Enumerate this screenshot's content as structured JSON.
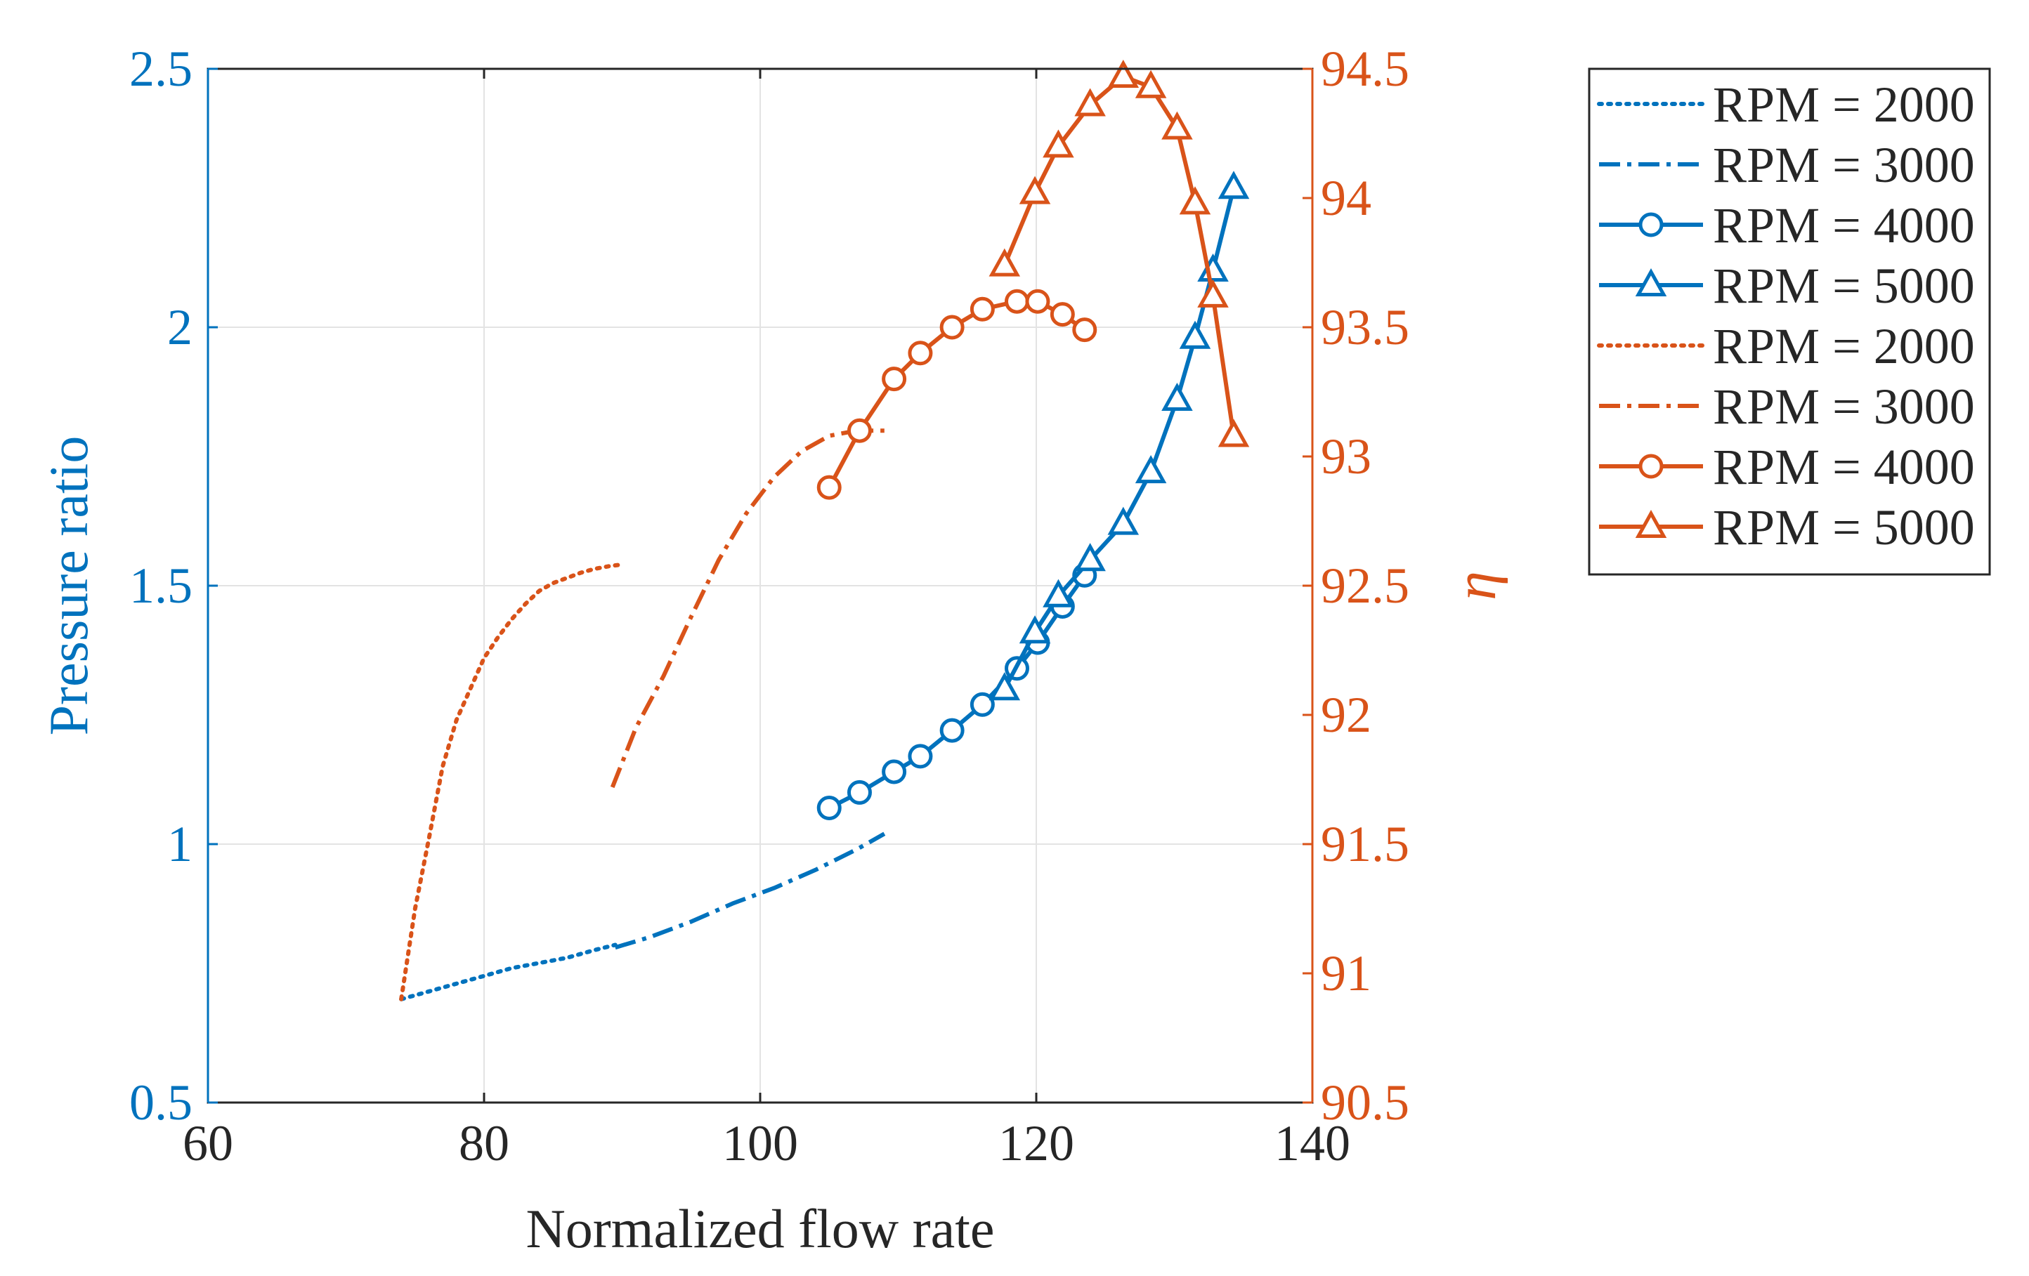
{
  "chart_data": {
    "type": "line",
    "xlabel": "Normalized flow rate",
    "ylabel_left": "Pressure ratio",
    "ylabel_right": "η",
    "xlim": [
      60,
      140
    ],
    "ylim_left": [
      0.5,
      2.5
    ],
    "ylim_right": [
      90.5,
      94.5
    ],
    "xticks": [
      60,
      80,
      100,
      120,
      140
    ],
    "xtick_labels": [
      "60",
      "80",
      "100",
      "120",
      "140"
    ],
    "yticks_left": [
      0.5,
      1,
      1.5,
      2,
      2.5
    ],
    "ytick_labels_left": [
      "0.5",
      "1",
      "1.5",
      "2",
      "2.5"
    ],
    "yticks_right": [
      90.5,
      91,
      91.5,
      92,
      92.5,
      93,
      93.5,
      94,
      94.5
    ],
    "ytick_labels_right": [
      "90.5",
      "91",
      "91.5",
      "92",
      "92.5",
      "93",
      "93.5",
      "94",
      "94.5"
    ],
    "grid": true,
    "legend_position": "outside-right-top",
    "colors": {
      "pressure": "#0072BD",
      "efficiency": "#D95319"
    },
    "series": [
      {
        "name": "RPM = 2000",
        "axis": "left",
        "color": "#0072BD",
        "style": "dotted",
        "marker": "none",
        "x": [
          74,
          76,
          78,
          80,
          82,
          84,
          86,
          88,
          89.5
        ],
        "y": [
          0.7,
          0.715,
          0.73,
          0.745,
          0.76,
          0.77,
          0.78,
          0.795,
          0.805
        ]
      },
      {
        "name": "RPM = 3000",
        "axis": "left",
        "color": "#0072BD",
        "style": "dashdot",
        "marker": "none",
        "x": [
          89.5,
          92,
          95,
          98,
          101,
          104,
          107,
          109
        ],
        "y": [
          0.8,
          0.82,
          0.85,
          0.885,
          0.915,
          0.95,
          0.99,
          1.02
        ]
      },
      {
        "name": "RPM = 4000",
        "axis": "left",
        "color": "#0072BD",
        "style": "solid",
        "marker": "circle",
        "x": [
          105,
          107.2,
          109.7,
          111.6,
          113.9,
          116.1,
          118.6,
          120.1,
          121.9,
          123.5
        ],
        "y": [
          1.07,
          1.1,
          1.14,
          1.17,
          1.22,
          1.27,
          1.34,
          1.39,
          1.46,
          1.52
        ]
      },
      {
        "name": "RPM = 5000",
        "axis": "left",
        "color": "#0072BD",
        "style": "solid",
        "marker": "triangle",
        "x": [
          117.7,
          119.9,
          121.6,
          123.9,
          126.3,
          128.3,
          130.2,
          131.5,
          132.8,
          134.3
        ],
        "y": [
          1.3,
          1.41,
          1.48,
          1.55,
          1.62,
          1.72,
          1.86,
          1.98,
          2.11,
          2.27
        ]
      },
      {
        "name": "RPM = 2000",
        "axis": "right",
        "color": "#D95319",
        "style": "dotted",
        "marker": "none",
        "x": [
          74,
          75,
          76,
          77,
          78,
          79,
          80,
          81,
          82,
          83,
          84,
          85,
          86,
          87,
          88,
          89,
          89.7
        ],
        "y": [
          90.9,
          91.25,
          91.52,
          91.8,
          91.98,
          92.1,
          92.22,
          92.3,
          92.37,
          92.43,
          92.48,
          92.51,
          92.53,
          92.55,
          92.565,
          92.575,
          92.58
        ]
      },
      {
        "name": "RPM = 3000",
        "axis": "right",
        "color": "#D95319",
        "style": "dashdot",
        "marker": "none",
        "x": [
          89.3,
          91,
          93,
          95,
          97,
          99,
          101,
          103,
          105,
          107,
          109
        ],
        "y": [
          91.72,
          91.95,
          92.15,
          92.38,
          92.6,
          92.78,
          92.92,
          93.02,
          93.08,
          93.1,
          93.1
        ]
      },
      {
        "name": "RPM = 4000",
        "axis": "right",
        "color": "#D95319",
        "style": "solid",
        "marker": "circle",
        "x": [
          105,
          107.2,
          109.7,
          111.6,
          113.9,
          116.1,
          118.6,
          120.1,
          121.9,
          123.5
        ],
        "y": [
          92.88,
          93.1,
          93.3,
          93.4,
          93.5,
          93.57,
          93.6,
          93.6,
          93.55,
          93.49
        ]
      },
      {
        "name": "RPM = 5000",
        "axis": "right",
        "color": "#D95319",
        "style": "solid",
        "marker": "triangle",
        "x": [
          117.7,
          119.9,
          121.6,
          123.9,
          126.3,
          128.3,
          130.2,
          131.5,
          132.8,
          134.3
        ],
        "y": [
          93.74,
          94.02,
          94.2,
          94.36,
          94.47,
          94.43,
          94.27,
          93.98,
          93.62,
          93.08
        ]
      }
    ]
  }
}
